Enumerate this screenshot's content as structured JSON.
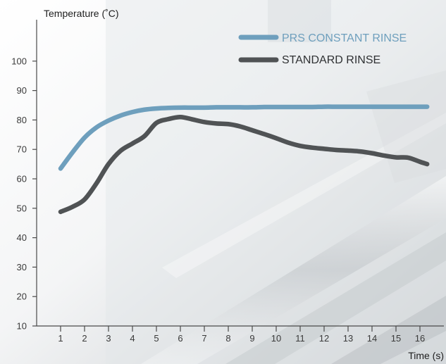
{
  "chart_data": {
    "type": "line",
    "title": "",
    "xlabel": "Time (s)",
    "ylabel": "Temperature (˚C)",
    "x": [
      1,
      1.5,
      2,
      2.5,
      3,
      3.5,
      4,
      4.5,
      5,
      5.5,
      6,
      6.5,
      7,
      7.5,
      8,
      8.5,
      9,
      9.5,
      10,
      10.5,
      11,
      11.5,
      12,
      12.5,
      13,
      13.5,
      14,
      14.5,
      15,
      15.5,
      16,
      16.3
    ],
    "x_ticks": [
      1,
      2,
      3,
      4,
      5,
      6,
      7,
      8,
      9,
      10,
      11,
      12,
      13,
      14,
      15,
      16
    ],
    "y_ticks": [
      10,
      20,
      30,
      40,
      50,
      60,
      70,
      80,
      90,
      100
    ],
    "xlim": [
      0,
      17
    ],
    "ylim": [
      10,
      110
    ],
    "grid": false,
    "legend_position": "top-right",
    "series": [
      {
        "name": "PRS CONSTANT RINSE",
        "color": "#6e9fbd",
        "values": [
          63.5,
          69,
          74,
          77.5,
          79.8,
          81.5,
          82.7,
          83.5,
          83.9,
          84.1,
          84.2,
          84.2,
          84.2,
          84.3,
          84.3,
          84.3,
          84.3,
          84.4,
          84.4,
          84.4,
          84.4,
          84.4,
          84.5,
          84.5,
          84.5,
          84.5,
          84.5,
          84.5,
          84.5,
          84.5,
          84.5,
          84.5
        ]
      },
      {
        "name": "STANDARD RINSE",
        "color": "#505355",
        "values": [
          48.8,
          50.5,
          53,
          58.5,
          65,
          69.5,
          72,
          74.5,
          79,
          80.3,
          81,
          80.2,
          79.3,
          78.8,
          78.6,
          77.8,
          76.5,
          75.2,
          73.8,
          72.3,
          71.2,
          70.6,
          70.2,
          69.8,
          69.6,
          69.3,
          68.7,
          67.9,
          67.3,
          67.2,
          65.8,
          65
        ]
      }
    ]
  }
}
